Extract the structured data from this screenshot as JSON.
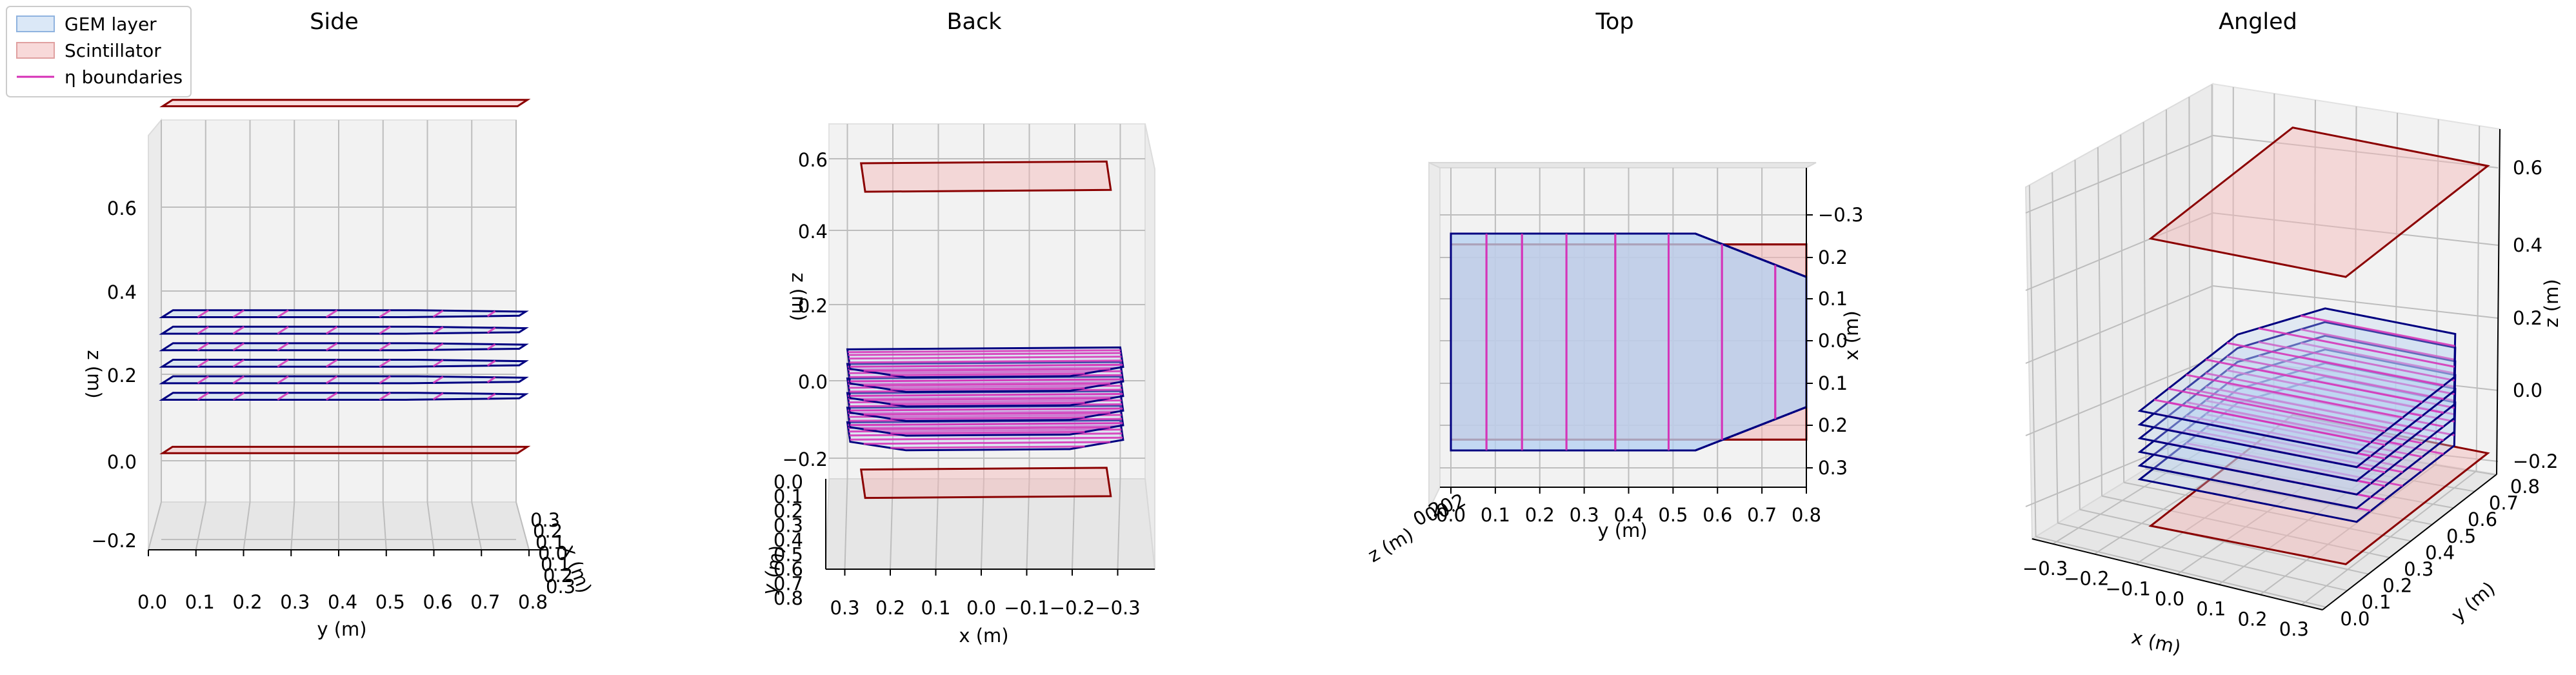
{
  "chart_data": {
    "type": "3d-wireframe",
    "layout": "four views of the same 3D geometry",
    "legend": {
      "placement": "top-left",
      "entries": [
        {
          "label": "GEM layer",
          "kind": "patch",
          "color": "#dbe8f7",
          "edge": "#8fb3df"
        },
        {
          "label": "Scintillator",
          "kind": "patch",
          "color": "#f8d9d9",
          "edge": "#e0a0a0"
        },
        {
          "label": "η boundaries",
          "kind": "line",
          "color": "#d62fb6"
        }
      ]
    },
    "colors": {
      "gem_face": "#b8d3f2",
      "gem_edge": "#000080",
      "scint_face": "#f4b6b6",
      "scint_edge": "#8b0000",
      "eta": "#d62fb6"
    },
    "geometry": {
      "gem_layers": {
        "count": 6,
        "z": [
          -0.09,
          -0.05,
          -0.01,
          0.03,
          0.07,
          0.11
        ],
        "outline_xy": [
          [
            0.3,
            0.0
          ],
          [
            0.3,
            0.55
          ],
          [
            0.18,
            0.8
          ],
          [
            -0.18,
            0.8
          ],
          [
            -0.3,
            0.55
          ],
          [
            -0.3,
            0.0
          ]
        ],
        "eta_boundaries_y": [
          0.08,
          0.16,
          0.26,
          0.37,
          0.49,
          0.61,
          0.73
        ]
      },
      "scintillators": [
        {
          "z": 0.62,
          "outline_xy": [
            [
              0.27,
              0.0
            ],
            [
              0.27,
              0.8
            ],
            [
              -0.27,
              0.8
            ],
            [
              -0.27,
              0.0
            ]
          ]
        },
        {
          "z": -0.22,
          "outline_xy": [
            [
              0.27,
              0.0
            ],
            [
              0.27,
              0.8
            ],
            [
              -0.27,
              0.8
            ],
            [
              -0.27,
              0.0
            ]
          ]
        }
      ]
    },
    "views": [
      {
        "title": "Side",
        "labels": {
          "horizontal": "y (m)",
          "vertical": "z (m)",
          "depth": "x (m)"
        },
        "horizontal_ticks": [
          "0.0",
          "0.1",
          "0.2",
          "0.3",
          "0.4",
          "0.5",
          "0.6",
          "0.7",
          "0.8"
        ],
        "vertical_ticks": [
          "−0.2",
          "0.0",
          "0.2",
          "0.4",
          "0.6"
        ],
        "depth_ticks": [
          "0.3",
          "0.2",
          "0.1",
          "0.0",
          "0.1",
          "0.2",
          "0.3"
        ],
        "ranges": {
          "x": [
            -0.35,
            0.35
          ],
          "y": [
            0.0,
            0.8
          ],
          "z": [
            -0.23,
            0.7
          ]
        },
        "grid": true
      },
      {
        "title": "Back",
        "labels": {
          "horizontal": "x (m)",
          "vertical": "z (m)",
          "depth": "y (m)"
        },
        "horizontal_ticks": [
          "0.3",
          "0.2",
          "0.1",
          "0.0",
          "−0.1",
          "−0.2",
          "−0.3"
        ],
        "vertical_ticks": [
          "−0.2",
          "0.0",
          "0.2",
          "0.4",
          "0.6"
        ],
        "depth_ticks": [
          "0.0",
          "0.1",
          "0.2",
          "0.3",
          "0.4",
          "0.5",
          "0.6",
          "0.7",
          "0.8"
        ],
        "ranges": {
          "x": [
            -0.35,
            0.35
          ],
          "y": [
            0.0,
            0.8
          ],
          "z": [
            -0.3,
            0.7
          ]
        },
        "grid": true
      },
      {
        "title": "Top",
        "labels": {
          "horizontal": "y (m)",
          "vertical": "x (m)",
          "depth": "z (m)"
        },
        "horizontal_ticks": [
          "0.0",
          "0.1",
          "0.2",
          "0.3",
          "0.4",
          "0.5",
          "0.6",
          "0.7",
          "0.8"
        ],
        "vertical_ticks": [
          "−0.3",
          "0.2",
          "0.1",
          "0.0",
          "0.1",
          "0.2",
          "0.3"
        ],
        "depth_ticks": [
          "0.2",
          "0.0",
          "0.2"
        ],
        "ranges": {
          "x": [
            -0.35,
            0.35
          ],
          "y": [
            0.0,
            0.8
          ]
        },
        "grid": true
      },
      {
        "title": "Angled",
        "labels": {
          "horizontal": "x (m)",
          "vertical": "z (m)",
          "depth": "y (m)"
        },
        "horizontal_ticks": [
          "−0.3",
          "−0.2",
          "−0.1",
          "0.0",
          "0.1",
          "0.2",
          "0.3"
        ],
        "vertical_ticks": [
          "−0.2",
          "0.0",
          "0.2",
          "0.4",
          "0.6"
        ],
        "depth_ticks": [
          "0.0",
          "0.1",
          "0.2",
          "0.3",
          "0.4",
          "0.5",
          "0.6",
          "0.7",
          "0.8"
        ],
        "ranges": {
          "x": [
            -0.35,
            0.35
          ],
          "y": [
            0.0,
            0.8
          ],
          "z": [
            -0.3,
            0.7
          ]
        },
        "grid": true
      }
    ]
  }
}
